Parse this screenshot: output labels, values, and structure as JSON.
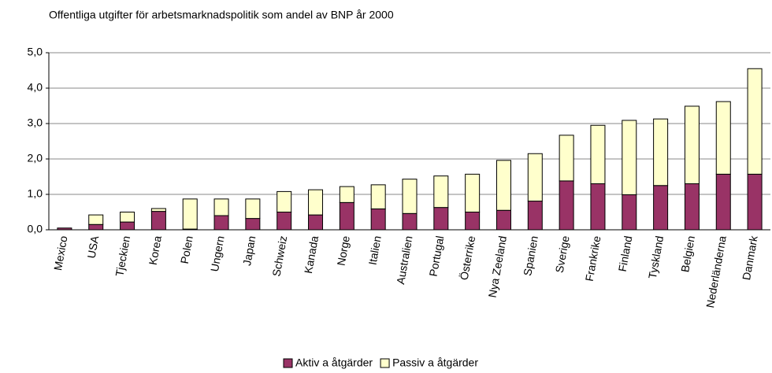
{
  "chart_data": {
    "type": "stacked_bar",
    "title": "Offentliga utgifter för arbetsmarknadspolitik som andel av BNP år 2000",
    "categories": [
      "Mexico",
      "USA",
      "Tjeckien",
      "Korea",
      "Polen",
      "Ungern",
      "Japan",
      "Schweiz",
      "Kanada",
      "Norge",
      "Italien",
      "Australien",
      "Portugal",
      "Österrike",
      "Nya Zeeland",
      "Spanien",
      "Sverige",
      "Frankrike",
      "Finland",
      "Tyskland",
      "Belgien",
      "Nederländerna",
      "Danmark"
    ],
    "series": [
      {
        "name": "Aktiv a åtgärder",
        "color": "#993366",
        "values": [
          0.05,
          0.15,
          0.22,
          0.52,
          0.02,
          0.4,
          0.32,
          0.5,
          0.42,
          0.77,
          0.59,
          0.46,
          0.63,
          0.5,
          0.55,
          0.81,
          1.38,
          1.3,
          0.99,
          1.25,
          1.3,
          1.57,
          1.57
        ]
      },
      {
        "name": "Passiv a åtgärder",
        "color": "#ffffcc",
        "values": [
          0,
          0.27,
          0.28,
          0.08,
          0.85,
          0.47,
          0.55,
          0.58,
          0.71,
          0.45,
          0.68,
          0.97,
          0.89,
          1.07,
          1.41,
          1.34,
          1.29,
          1.65,
          2.1,
          1.88,
          2.19,
          2.05,
          2.98
        ]
      }
    ],
    "ylim": [
      0,
      5
    ],
    "yticks": [
      {
        "value": 0,
        "label": "0,0"
      },
      {
        "value": 1,
        "label": "1,0"
      },
      {
        "value": 2,
        "label": "2,0"
      },
      {
        "value": 3,
        "label": "3,0"
      },
      {
        "value": 4,
        "label": "4,0"
      },
      {
        "value": 5,
        "label": "5,0"
      }
    ],
    "grid": true,
    "legend": "bottom"
  }
}
